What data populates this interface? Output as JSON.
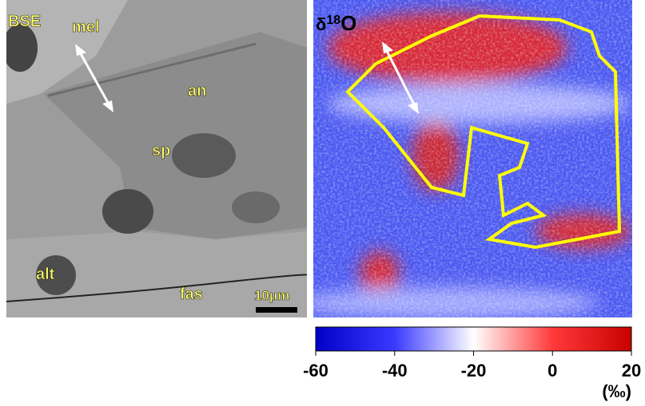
{
  "bse_panel": {
    "title": "BSE",
    "labels": {
      "mel": "mel",
      "an": "an",
      "sp": "sp",
      "alt": "alt",
      "fas": "fas"
    },
    "scale_bar": "10μm"
  },
  "isotope_panel": {
    "title_prefix": "δ",
    "title_sup": "18",
    "title_suffix": "O"
  },
  "colorbar": {
    "lim": [
      -60,
      20
    ],
    "ticks": [
      -60,
      -40,
      -20,
      0,
      20
    ],
    "unit": "(‰)"
  }
}
